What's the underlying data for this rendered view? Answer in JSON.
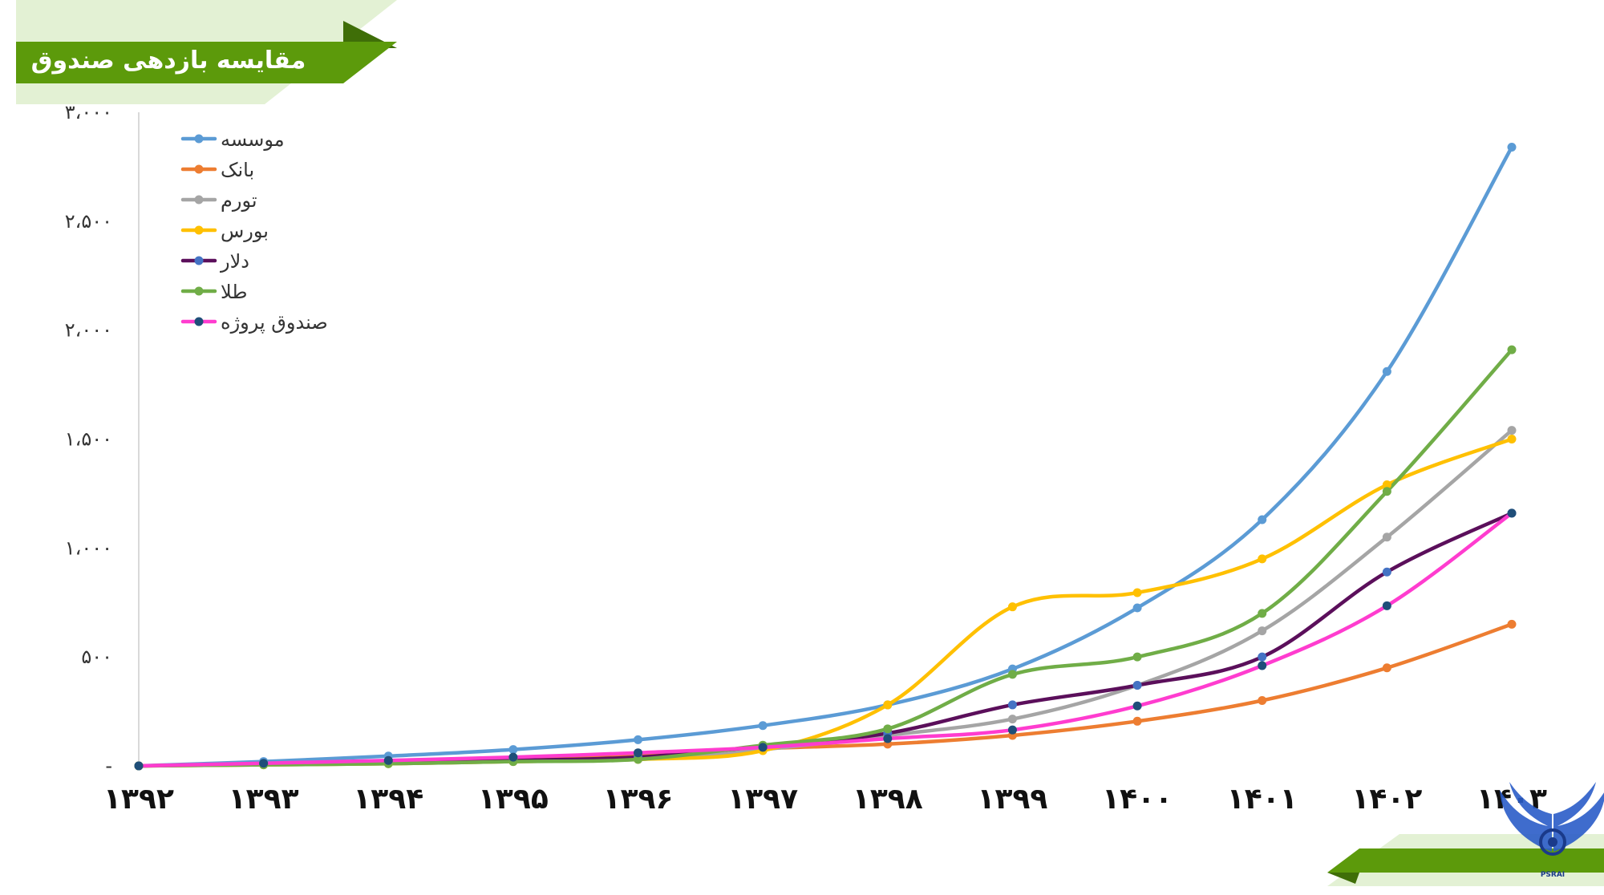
{
  "header": {
    "title": "مقایسه بازدهی صندوق"
  },
  "logo": {
    "caption": "PSRAI",
    "icon": "wings-emblem-icon"
  },
  "colors": {
    "title_bar": "#5c9a0b",
    "title_bar_dark": "#3f6e08",
    "title_bar_light": "#e3f1d4"
  },
  "chart_data": {
    "type": "line",
    "x": [
      "۱۳۹۲",
      "۱۳۹۳",
      "۱۳۹۴",
      "۱۳۹۵",
      "۱۳۹۶",
      "۱۳۹۷",
      "۱۳۹۸",
      "۱۳۹۹",
      "۱۴۰۰",
      "۱۴۰۱",
      "۱۴۰۲",
      "۱۴۰۳"
    ],
    "ylim": [
      0,
      3000
    ],
    "yticks": [
      0,
      500,
      1000,
      1500,
      2000,
      2500,
      3000
    ],
    "ytick_labels": [
      "-",
      "۵۰۰",
      "۱،۰۰۰",
      "۱،۵۰۰",
      "۲،۰۰۰",
      "۲،۵۰۰",
      "۳،۰۰۰"
    ],
    "grid": false,
    "legend_position": "top-left",
    "series": [
      {
        "name": "موسسه",
        "color": "#5b9bd5",
        "marker": "#5b9bd5",
        "values": [
          0,
          20,
          45,
          75,
          120,
          185,
          280,
          445,
          725,
          1130,
          1810,
          2840
        ]
      },
      {
        "name": "بانک",
        "color": "#ed7d31",
        "marker": "#ed7d31",
        "values": [
          0,
          10,
          20,
          35,
          55,
          80,
          100,
          140,
          205,
          300,
          450,
          650
        ]
      },
      {
        "name": "تورم",
        "color": "#a5a5a5",
        "marker": "#a5a5a5",
        "values": [
          0,
          5,
          10,
          20,
          30,
          75,
          140,
          215,
          370,
          620,
          1050,
          1540
        ]
      },
      {
        "name": "بورس",
        "color": "#ffc000",
        "marker": "#ffc000",
        "values": [
          0,
          5,
          10,
          20,
          30,
          70,
          280,
          730,
          795,
          950,
          1290,
          1500
        ]
      },
      {
        "name": "دلار",
        "color": "#5b0f5b",
        "marker": "#4472c4",
        "values": [
          0,
          8,
          15,
          25,
          40,
          90,
          150,
          280,
          370,
          500,
          890,
          1160
        ]
      },
      {
        "name": "طلا",
        "color": "#70ad47",
        "marker": "#70ad47",
        "values": [
          0,
          5,
          10,
          20,
          30,
          95,
          170,
          420,
          500,
          700,
          1260,
          1910
        ]
      },
      {
        "name": "صندوق پروژه",
        "color": "#ff3ccf",
        "marker": "#1f4e79",
        "values": [
          0,
          12,
          25,
          40,
          60,
          85,
          125,
          165,
          275,
          460,
          735,
          1160
        ]
      }
    ]
  }
}
